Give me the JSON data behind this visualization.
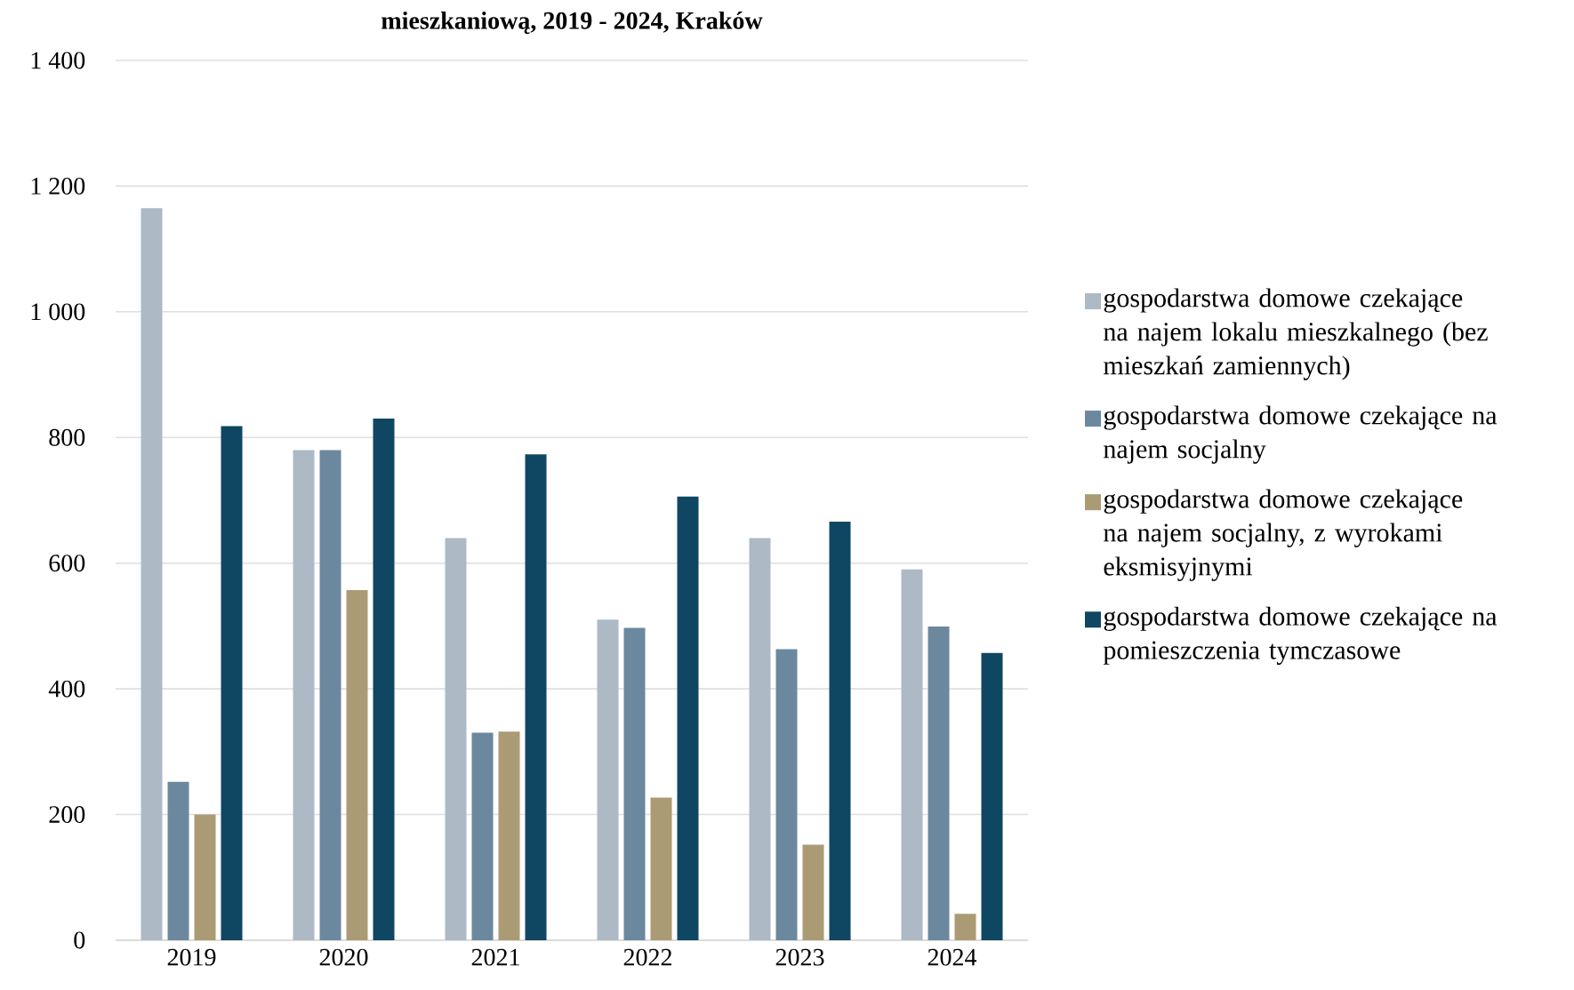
{
  "chart_data": {
    "type": "bar",
    "title": "mieszkaniową, 2019 - 2024, Kraków",
    "categories": [
      "2019",
      "2020",
      "2021",
      "2022",
      "2023",
      "2024"
    ],
    "series": [
      {
        "name": "gospodarstwa domowe czekające na najem lokalu mieszkalnego (bez mieszkań zamiennych)",
        "color": "#adb9c5",
        "values": [
          1165,
          780,
          640,
          510,
          640,
          590
        ]
      },
      {
        "name": "gospodarstwa domowe czekające  na najem socjalny",
        "color": "#6b889f",
        "values": [
          252,
          780,
          330,
          497,
          463,
          499
        ]
      },
      {
        "name": "gospodarstwa domowe czekające na najem socjalny, z  wyrokami eksmisyjnymi",
        "color": "#ab9b74",
        "values": [
          200,
          557,
          332,
          227,
          152,
          42
        ]
      },
      {
        "name": "gospodarstwa domowe czekające na pomieszczenia tymczasowe",
        "color": "#0f4762",
        "values": [
          818,
          830,
          773,
          706,
          666,
          457
        ]
      }
    ],
    "ylim": [
      0,
      1400
    ],
    "yticks": [
      {
        "value": 0,
        "label": "0"
      },
      {
        "value": 200,
        "label": "200"
      },
      {
        "value": 400,
        "label": "400"
      },
      {
        "value": 600,
        "label": "600"
      },
      {
        "value": 800,
        "label": "800"
      },
      {
        "value": 1000,
        "label": "1 000"
      },
      {
        "value": 1200,
        "label": "1 200"
      },
      {
        "value": 1400,
        "label": "1 400"
      }
    ],
    "grid": "y",
    "legend": "right"
  }
}
